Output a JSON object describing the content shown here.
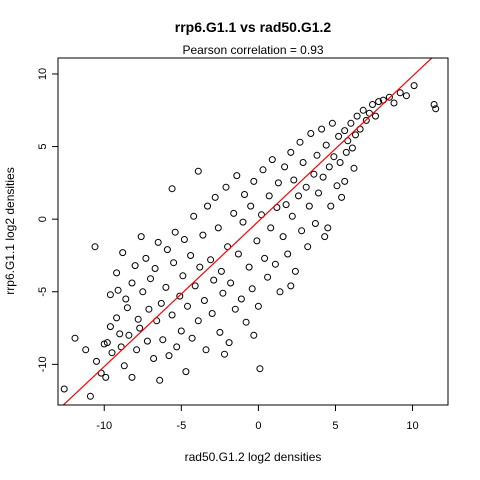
{
  "chart_data": {
    "type": "scatter",
    "title": "rrp6.G1.1 vs rad50.G1.2",
    "subtitle": "Pearson correlation =  0.93",
    "xlabel": "rad50.G1.2 log2 densities",
    "ylabel": "rrp6.G1.1 log2 densities",
    "xlim": [
      -13,
      12.3
    ],
    "ylim": [
      -12.8,
      11.1
    ],
    "xticks": [
      -10,
      -5,
      0,
      5,
      10
    ],
    "yticks": [
      -10,
      -5,
      0,
      5,
      10
    ],
    "xtick_labels": [
      "-10",
      "-5",
      "0",
      "5",
      "10"
    ],
    "ytick_labels": [
      "-10",
      "-5",
      "0",
      "5",
      "10"
    ],
    "grid": false,
    "legend": "none",
    "marker": "open-circle",
    "point_color": "#000000",
    "line_color": "#ff0000",
    "fit_line": {
      "slope": 1.0,
      "intercept": -0.15
    },
    "pearson_correlation": 0.93,
    "points": [
      [
        -12.6,
        -11.7
      ],
      [
        -11.9,
        -8.2
      ],
      [
        -11.2,
        -9.0
      ],
      [
        -10.9,
        -12.2
      ],
      [
        -10.6,
        -1.9
      ],
      [
        -10.5,
        -9.8
      ],
      [
        -10.2,
        -10.6
      ],
      [
        -9.9,
        -10.9
      ],
      [
        -9.8,
        -8.5
      ],
      [
        -9.6,
        -7.4
      ],
      [
        -9.5,
        -9.2
      ],
      [
        -9.2,
        -6.8
      ],
      [
        -9.1,
        -4.9
      ],
      [
        -9.0,
        -7.9
      ],
      [
        -9.2,
        -3.7
      ],
      [
        -8.9,
        -8.8
      ],
      [
        -8.8,
        -2.3
      ],
      [
        -8.7,
        -10.1
      ],
      [
        -8.6,
        -5.5
      ],
      [
        -8.5,
        -6.1
      ],
      [
        -8.4,
        -8.0
      ],
      [
        -8.2,
        -4.4
      ],
      [
        -8.0,
        -3.2
      ],
      [
        -7.9,
        -9.0
      ],
      [
        -7.8,
        -6.9
      ],
      [
        -7.7,
        -7.5
      ],
      [
        -7.5,
        -5.0
      ],
      [
        -7.3,
        -2.7
      ],
      [
        -7.2,
        -8.4
      ],
      [
        -7.1,
        -6.2
      ],
      [
        -7.0,
        -4.1
      ],
      [
        -6.8,
        -9.6
      ],
      [
        -6.7,
        -3.4
      ],
      [
        -6.6,
        -7.0
      ],
      [
        -6.5,
        -1.6
      ],
      [
        -6.3,
        -5.8
      ],
      [
        -6.2,
        -8.3
      ],
      [
        -6.0,
        -4.7
      ],
      [
        -5.9,
        -2.1
      ],
      [
        -5.8,
        -9.4
      ],
      [
        -5.6,
        -6.6
      ],
      [
        -5.5,
        -3.0
      ],
      [
        -5.4,
        -0.9
      ],
      [
        -5.3,
        -8.8
      ],
      [
        -5.1,
        -5.3
      ],
      [
        -5.0,
        -7.7
      ],
      [
        -4.9,
        -3.9
      ],
      [
        -4.8,
        -1.4
      ],
      [
        -4.7,
        -10.5
      ],
      [
        -4.6,
        -6.0
      ],
      [
        -4.4,
        -2.5
      ],
      [
        -4.3,
        -8.2
      ],
      [
        -4.2,
        0.2
      ],
      [
        -4.1,
        -4.6
      ],
      [
        -3.9,
        -7.0
      ],
      [
        -3.8,
        -3.3
      ],
      [
        -3.6,
        -1.1
      ],
      [
        -3.5,
        -5.6
      ],
      [
        -3.4,
        -9.0
      ],
      [
        -3.3,
        0.9
      ],
      [
        -3.1,
        -2.8
      ],
      [
        -3.0,
        -6.5
      ],
      [
        -2.9,
        -4.2
      ],
      [
        -2.8,
        1.5
      ],
      [
        -2.6,
        -0.6
      ],
      [
        -2.5,
        -7.8
      ],
      [
        -2.4,
        -3.6
      ],
      [
        -2.3,
        -5.1
      ],
      [
        -2.1,
        2.2
      ],
      [
        -2.0,
        -1.9
      ],
      [
        -1.9,
        -8.5
      ],
      [
        -1.8,
        -4.4
      ],
      [
        -1.6,
        0.4
      ],
      [
        -1.5,
        -6.2
      ],
      [
        -1.4,
        3.0
      ],
      [
        -1.3,
        -2.4
      ],
      [
        -1.1,
        -5.5
      ],
      [
        -1.0,
        -0.2
      ],
      [
        -0.9,
        1.7
      ],
      [
        -0.8,
        -7.1
      ],
      [
        -0.6,
        -3.3
      ],
      [
        -0.5,
        0.9
      ],
      [
        -0.4,
        -4.8
      ],
      [
        -0.3,
        2.6
      ],
      [
        -0.1,
        -1.5
      ],
      [
        0.0,
        -6.0
      ],
      [
        0.1,
        -10.3
      ],
      [
        0.2,
        0.3
      ],
      [
        0.3,
        3.4
      ],
      [
        0.4,
        -2.7
      ],
      [
        0.6,
        -4.0
      ],
      [
        0.7,
        1.6
      ],
      [
        0.8,
        -0.6
      ],
      [
        0.9,
        4.1
      ],
      [
        1.1,
        -3.1
      ],
      [
        1.2,
        0.8
      ],
      [
        1.3,
        2.5
      ],
      [
        1.4,
        -5.0
      ],
      [
        1.6,
        -1.2
      ],
      [
        1.7,
        3.6
      ],
      [
        1.8,
        1.0
      ],
      [
        1.9,
        -2.4
      ],
      [
        2.1,
        4.6
      ],
      [
        2.2,
        0.2
      ],
      [
        2.3,
        2.7
      ],
      [
        2.4,
        -3.6
      ],
      [
        2.6,
        1.6
      ],
      [
        2.7,
        5.3
      ],
      [
        2.8,
        -0.8
      ],
      [
        2.9,
        3.9
      ],
      [
        3.1,
        2.2
      ],
      [
        3.2,
        -1.9
      ],
      [
        3.3,
        0.9
      ],
      [
        3.4,
        5.9
      ],
      [
        3.6,
        3.1
      ],
      [
        3.7,
        -0.3
      ],
      [
        3.8,
        4.4
      ],
      [
        3.9,
        1.8
      ],
      [
        4.1,
        6.2
      ],
      [
        4.2,
        2.9
      ],
      [
        4.3,
        -1.2
      ],
      [
        4.4,
        5.1
      ],
      [
        4.6,
        3.6
      ],
      [
        4.7,
        0.9
      ],
      [
        4.8,
        6.6
      ],
      [
        4.9,
        4.3
      ],
      [
        5.1,
        2.3
      ],
      [
        5.2,
        5.7
      ],
      [
        5.3,
        3.9
      ],
      [
        5.4,
        1.5
      ],
      [
        5.6,
        6.1
      ],
      [
        5.7,
        4.6
      ],
      [
        5.8,
        5.4
      ],
      [
        6.0,
        6.6
      ],
      [
        6.1,
        4.9
      ],
      [
        6.3,
        5.8
      ],
      [
        6.4,
        7.1
      ],
      [
        6.6,
        6.2
      ],
      [
        6.8,
        7.5
      ],
      [
        7.0,
        6.8
      ],
      [
        7.2,
        7.3
      ],
      [
        7.4,
        7.9
      ],
      [
        7.6,
        7.1
      ],
      [
        7.8,
        8.1
      ],
      [
        8.1,
        8.2
      ],
      [
        8.5,
        8.4
      ],
      [
        8.8,
        8.0
      ],
      [
        9.2,
        8.7
      ],
      [
        9.6,
        8.5
      ],
      [
        10.1,
        9.2
      ],
      [
        11.4,
        7.9
      ],
      [
        11.5,
        7.6
      ],
      [
        5.6,
        2.6
      ],
      [
        6.2,
        3.5
      ],
      [
        4.5,
        -0.6
      ],
      [
        2.1,
        -4.6
      ],
      [
        -0.3,
        -8.0
      ],
      [
        -2.2,
        -9.3
      ],
      [
        -3.9,
        3.3
      ],
      [
        -5.6,
        2.1
      ],
      [
        -7.6,
        -1.2
      ],
      [
        -8.2,
        -10.9
      ],
      [
        -6.4,
        -11.1
      ],
      [
        -9.6,
        -5.2
      ],
      [
        -10.0,
        -8.6
      ]
    ]
  }
}
